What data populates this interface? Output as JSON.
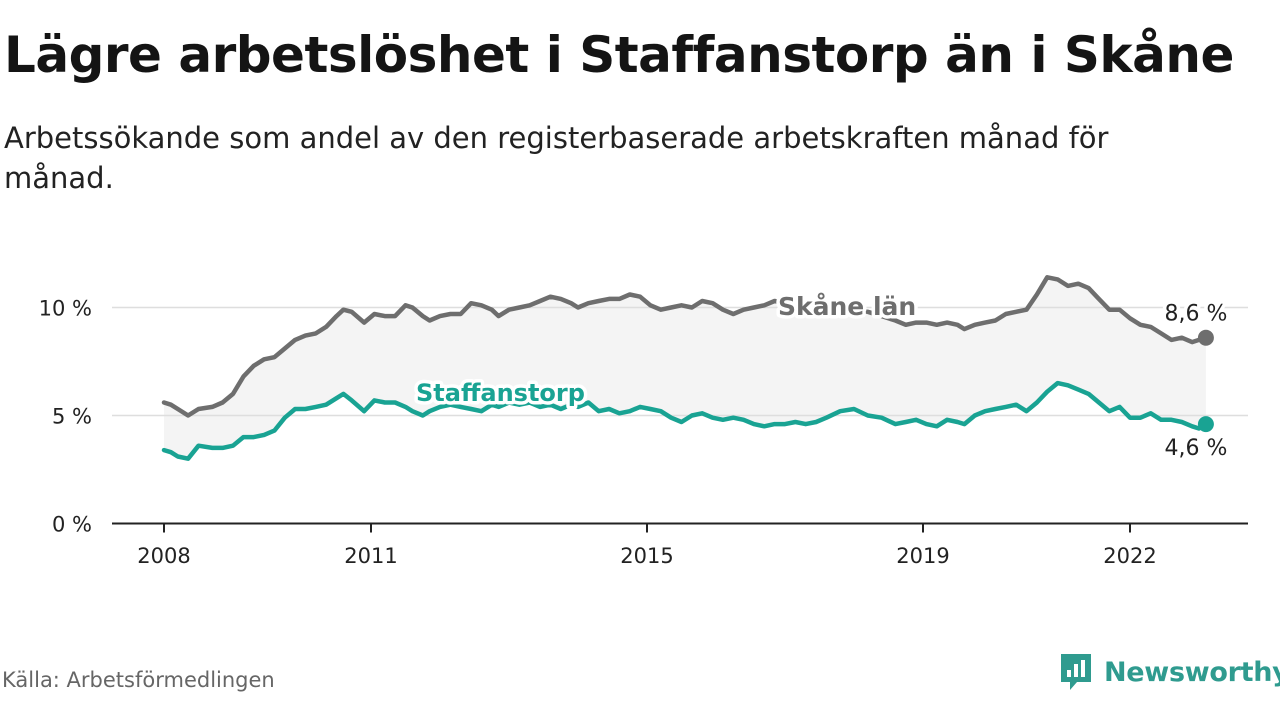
{
  "title": "Lägre arbetslöshet i Staffanstorp än i Skåne",
  "subtitle": "Arbetssökande som andel av den registerbaserade arbetskraften månad för månad.",
  "source": "Källa: Arbetsförmedlingen",
  "brand": {
    "name": "Newsworthy",
    "logo_icon": "chart-badge-icon",
    "color": "#2f9b8f"
  },
  "colors": {
    "skane": "#6e6e6e",
    "staffanstorp": "#19a393",
    "band": "#f4f4f4",
    "grid": "#dedede",
    "axis": "#222222"
  },
  "chart_data": {
    "type": "line",
    "title": "Lägre arbetslöshet i Staffanstorp än i Skåne",
    "xlabel": "",
    "ylabel": "",
    "xlim": [
      2007.3,
      2023.2
    ],
    "ylim": [
      0,
      11.8
    ],
    "x_ticks": [
      2008,
      2011,
      2015,
      2019,
      2022
    ],
    "x_tick_labels": [
      "2008",
      "2011",
      "2015",
      "2019",
      "2022"
    ],
    "y_ticks": [
      0,
      5,
      10
    ],
    "y_tick_labels": [
      "0 %",
      "5 %",
      "10 %"
    ],
    "grid": "horizontal",
    "series": [
      {
        "name": "Skåne län",
        "label": "Skåne län",
        "end_label": "8,6 %",
        "end_value": 8.6,
        "points": [
          [
            2008.0,
            5.6
          ],
          [
            2008.1,
            5.5
          ],
          [
            2008.2,
            5.3
          ],
          [
            2008.35,
            5.0
          ],
          [
            2008.5,
            5.3
          ],
          [
            2008.7,
            5.4
          ],
          [
            2008.85,
            5.6
          ],
          [
            2009.0,
            6.0
          ],
          [
            2009.15,
            6.8
          ],
          [
            2009.3,
            7.3
          ],
          [
            2009.45,
            7.6
          ],
          [
            2009.6,
            7.7
          ],
          [
            2009.75,
            8.1
          ],
          [
            2009.9,
            8.5
          ],
          [
            2010.05,
            8.7
          ],
          [
            2010.2,
            8.8
          ],
          [
            2010.35,
            9.1
          ],
          [
            2010.5,
            9.6
          ],
          [
            2010.6,
            9.9
          ],
          [
            2010.72,
            9.8
          ],
          [
            2010.9,
            9.3
          ],
          [
            2011.05,
            9.7
          ],
          [
            2011.2,
            9.6
          ],
          [
            2011.35,
            9.6
          ],
          [
            2011.5,
            10.1
          ],
          [
            2011.6,
            10.0
          ],
          [
            2011.75,
            9.6
          ],
          [
            2011.85,
            9.4
          ],
          [
            2012.0,
            9.6
          ],
          [
            2012.15,
            9.7
          ],
          [
            2012.3,
            9.7
          ],
          [
            2012.45,
            10.2
          ],
          [
            2012.6,
            10.1
          ],
          [
            2012.75,
            9.9
          ],
          [
            2012.85,
            9.6
          ],
          [
            2013.0,
            9.9
          ],
          [
            2013.15,
            10.0
          ],
          [
            2013.3,
            10.1
          ],
          [
            2013.45,
            10.3
          ],
          [
            2013.6,
            10.5
          ],
          [
            2013.75,
            10.4
          ],
          [
            2013.9,
            10.2
          ],
          [
            2014.0,
            10.0
          ],
          [
            2014.15,
            10.2
          ],
          [
            2014.3,
            10.3
          ],
          [
            2014.45,
            10.4
          ],
          [
            2014.6,
            10.4
          ],
          [
            2014.75,
            10.6
          ],
          [
            2014.9,
            10.5
          ],
          [
            2015.05,
            10.1
          ],
          [
            2015.2,
            9.9
          ],
          [
            2015.35,
            10.0
          ],
          [
            2015.5,
            10.1
          ],
          [
            2015.65,
            10.0
          ],
          [
            2015.8,
            10.3
          ],
          [
            2015.95,
            10.2
          ],
          [
            2016.1,
            9.9
          ],
          [
            2016.25,
            9.7
          ],
          [
            2016.4,
            9.9
          ],
          [
            2016.55,
            10.0
          ],
          [
            2016.7,
            10.1
          ],
          [
            2016.85,
            10.3
          ],
          [
            2017.0,
            10.2
          ],
          [
            2017.15,
            9.9
          ],
          [
            2017.3,
            9.7
          ],
          [
            2017.45,
            9.7
          ],
          [
            2017.6,
            9.8
          ],
          [
            2017.8,
            9.8
          ],
          [
            2018.0,
            9.9
          ],
          [
            2018.2,
            9.8
          ],
          [
            2018.4,
            9.6
          ],
          [
            2018.6,
            9.4
          ],
          [
            2018.75,
            9.2
          ],
          [
            2018.9,
            9.3
          ],
          [
            2019.05,
            9.3
          ],
          [
            2019.2,
            9.2
          ],
          [
            2019.35,
            9.3
          ],
          [
            2019.5,
            9.2
          ],
          [
            2019.6,
            9.0
          ],
          [
            2019.75,
            9.2
          ],
          [
            2019.9,
            9.3
          ],
          [
            2020.05,
            9.4
          ],
          [
            2020.2,
            9.7
          ],
          [
            2020.35,
            9.8
          ],
          [
            2020.5,
            9.9
          ],
          [
            2020.65,
            10.6
          ],
          [
            2020.8,
            11.4
          ],
          [
            2020.95,
            11.3
          ],
          [
            2021.1,
            11.0
          ],
          [
            2021.25,
            11.1
          ],
          [
            2021.4,
            10.9
          ],
          [
            2021.55,
            10.4
          ],
          [
            2021.7,
            9.9
          ],
          [
            2021.85,
            9.9
          ],
          [
            2022.0,
            9.5
          ],
          [
            2022.15,
            9.2
          ],
          [
            2022.3,
            9.1
          ],
          [
            2022.45,
            8.8
          ],
          [
            2022.6,
            8.5
          ],
          [
            2022.75,
            8.6
          ],
          [
            2022.9,
            8.4
          ],
          [
            2023.0,
            8.5
          ],
          [
            2023.1,
            8.6
          ]
        ]
      },
      {
        "name": "Staffanstorp",
        "label": "Staffanstorp",
        "end_label": "4,6 %",
        "end_value": 4.6,
        "points": [
          [
            2008.0,
            3.4
          ],
          [
            2008.1,
            3.3
          ],
          [
            2008.2,
            3.1
          ],
          [
            2008.35,
            3.0
          ],
          [
            2008.5,
            3.6
          ],
          [
            2008.7,
            3.5
          ],
          [
            2008.85,
            3.5
          ],
          [
            2009.0,
            3.6
          ],
          [
            2009.15,
            4.0
          ],
          [
            2009.3,
            4.0
          ],
          [
            2009.45,
            4.1
          ],
          [
            2009.6,
            4.3
          ],
          [
            2009.75,
            4.9
          ],
          [
            2009.9,
            5.3
          ],
          [
            2010.05,
            5.3
          ],
          [
            2010.2,
            5.4
          ],
          [
            2010.35,
            5.5
          ],
          [
            2010.5,
            5.8
          ],
          [
            2010.6,
            6.0
          ],
          [
            2010.72,
            5.7
          ],
          [
            2010.9,
            5.2
          ],
          [
            2011.05,
            5.7
          ],
          [
            2011.2,
            5.6
          ],
          [
            2011.35,
            5.6
          ],
          [
            2011.5,
            5.4
          ],
          [
            2011.6,
            5.2
          ],
          [
            2011.75,
            5.0
          ],
          [
            2011.85,
            5.2
          ],
          [
            2012.0,
            5.4
          ],
          [
            2012.15,
            5.5
          ],
          [
            2012.3,
            5.4
          ],
          [
            2012.45,
            5.3
          ],
          [
            2012.6,
            5.2
          ],
          [
            2012.75,
            5.5
          ],
          [
            2012.85,
            5.4
          ],
          [
            2013.0,
            5.6
          ],
          [
            2013.15,
            5.5
          ],
          [
            2013.3,
            5.6
          ],
          [
            2013.45,
            5.4
          ],
          [
            2013.6,
            5.5
          ],
          [
            2013.75,
            5.3
          ],
          [
            2013.9,
            5.5
          ],
          [
            2014.0,
            5.4
          ],
          [
            2014.15,
            5.6
          ],
          [
            2014.3,
            5.2
          ],
          [
            2014.45,
            5.3
          ],
          [
            2014.6,
            5.1
          ],
          [
            2014.75,
            5.2
          ],
          [
            2014.9,
            5.4
          ],
          [
            2015.05,
            5.3
          ],
          [
            2015.2,
            5.2
          ],
          [
            2015.35,
            4.9
          ],
          [
            2015.5,
            4.7
          ],
          [
            2015.65,
            5.0
          ],
          [
            2015.8,
            5.1
          ],
          [
            2015.95,
            4.9
          ],
          [
            2016.1,
            4.8
          ],
          [
            2016.25,
            4.9
          ],
          [
            2016.4,
            4.8
          ],
          [
            2016.55,
            4.6
          ],
          [
            2016.7,
            4.5
          ],
          [
            2016.85,
            4.6
          ],
          [
            2017.0,
            4.6
          ],
          [
            2017.15,
            4.7
          ],
          [
            2017.3,
            4.6
          ],
          [
            2017.45,
            4.7
          ],
          [
            2017.6,
            4.9
          ],
          [
            2017.8,
            5.2
          ],
          [
            2018.0,
            5.3
          ],
          [
            2018.2,
            5.0
          ],
          [
            2018.4,
            4.9
          ],
          [
            2018.6,
            4.6
          ],
          [
            2018.75,
            4.7
          ],
          [
            2018.9,
            4.8
          ],
          [
            2019.05,
            4.6
          ],
          [
            2019.2,
            4.5
          ],
          [
            2019.35,
            4.8
          ],
          [
            2019.5,
            4.7
          ],
          [
            2019.6,
            4.6
          ],
          [
            2019.75,
            5.0
          ],
          [
            2019.9,
            5.2
          ],
          [
            2020.05,
            5.3
          ],
          [
            2020.2,
            5.4
          ],
          [
            2020.35,
            5.5
          ],
          [
            2020.5,
            5.2
          ],
          [
            2020.65,
            5.6
          ],
          [
            2020.8,
            6.1
          ],
          [
            2020.95,
            6.5
          ],
          [
            2021.1,
            6.4
          ],
          [
            2021.25,
            6.2
          ],
          [
            2021.4,
            6.0
          ],
          [
            2021.55,
            5.6
          ],
          [
            2021.7,
            5.2
          ],
          [
            2021.85,
            5.4
          ],
          [
            2022.0,
            4.9
          ],
          [
            2022.15,
            4.9
          ],
          [
            2022.3,
            5.1
          ],
          [
            2022.45,
            4.8
          ],
          [
            2022.6,
            4.8
          ],
          [
            2022.75,
            4.7
          ],
          [
            2022.9,
            4.5
          ],
          [
            2023.0,
            4.4
          ],
          [
            2023.1,
            4.6
          ]
        ]
      }
    ]
  }
}
